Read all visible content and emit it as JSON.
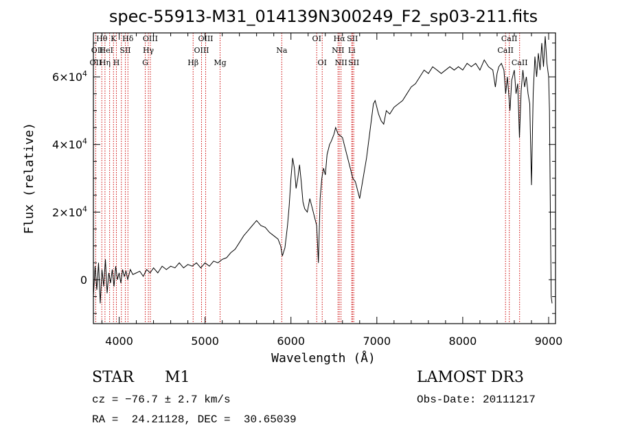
{
  "chart_data": {
    "type": "line",
    "title": "spec-55913-M31_014139N300249_F2_sp03-211.fits",
    "xlabel": "Wavelength (Å)",
    "ylabel": "Flux (relative)",
    "xlim": [
      3700,
      9080
    ],
    "ylim": [
      -13000,
      73000
    ],
    "x_ticks": [
      4000,
      5000,
      6000,
      7000,
      8000,
      9000
    ],
    "x_tick_labels": [
      "4000",
      "5000",
      "6000",
      "7000",
      "8000",
      "9000"
    ],
    "y_ticks": [
      0,
      20000,
      40000,
      60000
    ],
    "y_tick_labels": [
      {
        "mantissa": "0",
        "exp": ""
      },
      {
        "mantissa": "2×10",
        "exp": "4"
      },
      {
        "mantissa": "4×10",
        "exp": "4"
      },
      {
        "mantissa": "6×10",
        "exp": "4"
      }
    ],
    "series": [
      {
        "name": "spectrum",
        "color": "#000000",
        "points": [
          [
            3700,
            -5000
          ],
          [
            3720,
            4000
          ],
          [
            3740,
            -3000
          ],
          [
            3760,
            5000
          ],
          [
            3780,
            -7000
          ],
          [
            3800,
            3000
          ],
          [
            3820,
            -2000
          ],
          [
            3840,
            6000
          ],
          [
            3860,
            -4000
          ],
          [
            3880,
            2000
          ],
          [
            3900,
            -1000
          ],
          [
            3920,
            3000
          ],
          [
            3940,
            -2000
          ],
          [
            3960,
            4000
          ],
          [
            3980,
            0
          ],
          [
            4000,
            2000
          ],
          [
            4020,
            -1000
          ],
          [
            4040,
            3000
          ],
          [
            4060,
            1000
          ],
          [
            4080,
            2500
          ],
          [
            4100,
            0
          ],
          [
            4130,
            3000
          ],
          [
            4160,
            1500
          ],
          [
            4200,
            2000
          ],
          [
            4240,
            2500
          ],
          [
            4280,
            1000
          ],
          [
            4320,
            3000
          ],
          [
            4360,
            2000
          ],
          [
            4400,
            3500
          ],
          [
            4450,
            2000
          ],
          [
            4500,
            4000
          ],
          [
            4550,
            3000
          ],
          [
            4600,
            4000
          ],
          [
            4650,
            3500
          ],
          [
            4700,
            5000
          ],
          [
            4750,
            3500
          ],
          [
            4800,
            4500
          ],
          [
            4850,
            4000
          ],
          [
            4900,
            5000
          ],
          [
            4950,
            3500
          ],
          [
            5000,
            5000
          ],
          [
            5050,
            4000
          ],
          [
            5100,
            5500
          ],
          [
            5150,
            5000
          ],
          [
            5200,
            6000
          ],
          [
            5250,
            6500
          ],
          [
            5300,
            8000
          ],
          [
            5350,
            9000
          ],
          [
            5400,
            11000
          ],
          [
            5450,
            13000
          ],
          [
            5500,
            14500
          ],
          [
            5550,
            16000
          ],
          [
            5600,
            17500
          ],
          [
            5650,
            16000
          ],
          [
            5700,
            15500
          ],
          [
            5750,
            14000
          ],
          [
            5800,
            13000
          ],
          [
            5850,
            12000
          ],
          [
            5880,
            10000
          ],
          [
            5900,
            7000
          ],
          [
            5930,
            9500
          ],
          [
            5960,
            16000
          ],
          [
            5980,
            22000
          ],
          [
            6000,
            30000
          ],
          [
            6020,
            36000
          ],
          [
            6040,
            33000
          ],
          [
            6060,
            27000
          ],
          [
            6080,
            30000
          ],
          [
            6100,
            34000
          ],
          [
            6120,
            29000
          ],
          [
            6140,
            23000
          ],
          [
            6160,
            21000
          ],
          [
            6190,
            20000
          ],
          [
            6220,
            24000
          ],
          [
            6250,
            21000
          ],
          [
            6280,
            18000
          ],
          [
            6300,
            16000
          ],
          [
            6320,
            5000
          ],
          [
            6340,
            24000
          ],
          [
            6360,
            30000
          ],
          [
            6380,
            33000
          ],
          [
            6400,
            31000
          ],
          [
            6420,
            37000
          ],
          [
            6450,
            40000
          ],
          [
            6470,
            41000
          ],
          [
            6500,
            43000
          ],
          [
            6520,
            45000
          ],
          [
            6550,
            43000
          ],
          [
            6580,
            42500
          ],
          [
            6600,
            42000
          ],
          [
            6620,
            40000
          ],
          [
            6640,
            38000
          ],
          [
            6660,
            36000
          ],
          [
            6680,
            34000
          ],
          [
            6700,
            32000
          ],
          [
            6720,
            30000
          ],
          [
            6750,
            29000
          ],
          [
            6780,
            26000
          ],
          [
            6800,
            24000
          ],
          [
            6820,
            27000
          ],
          [
            6840,
            30000
          ],
          [
            6860,
            33000
          ],
          [
            6880,
            36000
          ],
          [
            6900,
            40000
          ],
          [
            6920,
            44000
          ],
          [
            6940,
            48000
          ],
          [
            6960,
            52000
          ],
          [
            6980,
            53000
          ],
          [
            7000,
            51000
          ],
          [
            7020,
            49000
          ],
          [
            7050,
            47000
          ],
          [
            7080,
            46000
          ],
          [
            7110,
            50000
          ],
          [
            7150,
            49000
          ],
          [
            7200,
            51000
          ],
          [
            7250,
            52000
          ],
          [
            7300,
            53000
          ],
          [
            7350,
            55000
          ],
          [
            7400,
            57000
          ],
          [
            7450,
            58000
          ],
          [
            7500,
            60000
          ],
          [
            7550,
            62000
          ],
          [
            7600,
            61000
          ],
          [
            7650,
            63000
          ],
          [
            7700,
            62000
          ],
          [
            7750,
            61000
          ],
          [
            7800,
            62000
          ],
          [
            7850,
            63000
          ],
          [
            7900,
            62000
          ],
          [
            7950,
            63000
          ],
          [
            8000,
            62000
          ],
          [
            8050,
            64000
          ],
          [
            8100,
            63000
          ],
          [
            8150,
            64000
          ],
          [
            8200,
            62000
          ],
          [
            8250,
            65000
          ],
          [
            8300,
            63000
          ],
          [
            8350,
            62000
          ],
          [
            8380,
            57000
          ],
          [
            8400,
            61000
          ],
          [
            8420,
            63000
          ],
          [
            8450,
            64000
          ],
          [
            8480,
            62000
          ],
          [
            8500,
            55000
          ],
          [
            8520,
            60000
          ],
          [
            8550,
            50000
          ],
          [
            8570,
            59000
          ],
          [
            8600,
            62000
          ],
          [
            8620,
            55000
          ],
          [
            8640,
            58000
          ],
          [
            8660,
            42000
          ],
          [
            8680,
            56000
          ],
          [
            8700,
            62000
          ],
          [
            8720,
            57000
          ],
          [
            8740,
            60000
          ],
          [
            8760,
            55000
          ],
          [
            8780,
            52000
          ],
          [
            8800,
            28000
          ],
          [
            8820,
            55000
          ],
          [
            8840,
            66000
          ],
          [
            8860,
            60000
          ],
          [
            8880,
            67000
          ],
          [
            8900,
            62000
          ],
          [
            8920,
            70000
          ],
          [
            8940,
            63000
          ],
          [
            8960,
            72000
          ],
          [
            8980,
            64000
          ],
          [
            9000,
            60000
          ],
          [
            9010,
            50000
          ],
          [
            9020,
            20000
          ],
          [
            9030,
            -5000
          ],
          [
            9040,
            -7000
          ]
        ]
      }
    ],
    "line_annotations": {
      "color": "#cc0000",
      "style": "dotted",
      "wavelengths": [
        3727,
        3798,
        3835,
        3889,
        3934,
        3968,
        4026,
        4072,
        4102,
        4304,
        4340,
        4363,
        4861,
        4959,
        5007,
        5175,
        5893,
        6300,
        6364,
        6548,
        6563,
        6583,
        6708,
        6716,
        6731,
        8498,
        8542,
        8662
      ],
      "labels": [
        {
          "text": "OII",
          "x": 3727,
          "row": 3
        },
        {
          "text": "OII",
          "x": 3745,
          "row": 2
        },
        {
          "text": "Hθ",
          "x": 3798,
          "row": 1
        },
        {
          "text": "Hη",
          "x": 3835,
          "row": 3
        },
        {
          "text": "HeI",
          "x": 3850,
          "row": 2
        },
        {
          "text": "K",
          "x": 3934,
          "row": 1
        },
        {
          "text": "H",
          "x": 3968,
          "row": 3
        },
        {
          "text": "SII",
          "x": 4072,
          "row": 2
        },
        {
          "text": "Hδ",
          "x": 4102,
          "row": 1
        },
        {
          "text": "G",
          "x": 4304,
          "row": 3
        },
        {
          "text": "OIII",
          "x": 4363,
          "row": 1
        },
        {
          "text": "Hγ",
          "x": 4340,
          "row": 2
        },
        {
          "text": "Hβ",
          "x": 4861,
          "row": 3
        },
        {
          "text": "OIII",
          "x": 5007,
          "row": 1
        },
        {
          "text": "OIII",
          "x": 4959,
          "row": 2
        },
        {
          "text": "Mg",
          "x": 5175,
          "row": 3
        },
        {
          "text": "Na",
          "x": 5893,
          "row": 2
        },
        {
          "text": "OI",
          "x": 6300,
          "row": 1
        },
        {
          "text": "OI",
          "x": 6364,
          "row": 3
        },
        {
          "text": "Hα",
          "x": 6563,
          "row": 1
        },
        {
          "text": "NII",
          "x": 6548,
          "row": 2
        },
        {
          "text": "NII",
          "x": 6583,
          "row": 3
        },
        {
          "text": "SII",
          "x": 6716,
          "row": 1
        },
        {
          "text": "Li",
          "x": 6708,
          "row": 2
        },
        {
          "text": "SII",
          "x": 6731,
          "row": 3
        },
        {
          "text": "CaII",
          "x": 8542,
          "row": 1
        },
        {
          "text": "CaII",
          "x": 8498,
          "row": 2
        },
        {
          "text": "CaII",
          "x": 8662,
          "row": 3
        }
      ]
    }
  },
  "info": {
    "object_class": "STAR",
    "subclass": "M1",
    "survey": "LAMOST DR3",
    "redshift": "cz = −76.7 ± 2.7 km/s",
    "obs_date": "Obs-Date: 20111217",
    "coords": "RA =  24.21128, DEC =  30.65039"
  }
}
